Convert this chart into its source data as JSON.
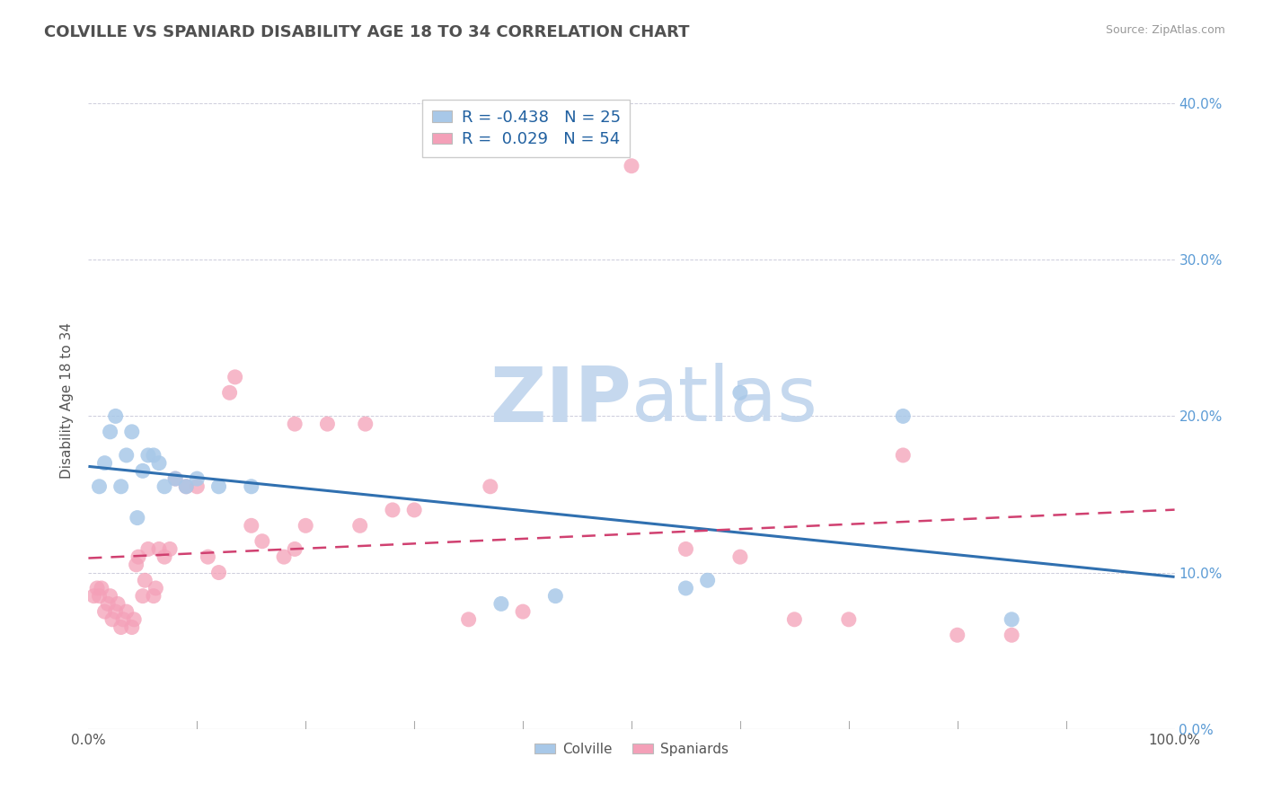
{
  "title": "COLVILLE VS SPANIARD DISABILITY AGE 18 TO 34 CORRELATION CHART",
  "source": "Source: ZipAtlas.com",
  "ylabel": "Disability Age 18 to 34",
  "xlim": [
    0.0,
    1.0
  ],
  "ylim": [
    0.0,
    0.42
  ],
  "xticks": [
    0.0,
    0.1,
    0.2,
    0.3,
    0.4,
    0.5,
    0.6,
    0.7,
    0.8,
    0.9,
    1.0
  ],
  "xticklabels": [
    "0.0%",
    "",
    "",
    "",
    "",
    "",
    "",
    "",
    "",
    "",
    "100.0%"
  ],
  "yticks": [
    0.0,
    0.1,
    0.2,
    0.3,
    0.4
  ],
  "yticklabels_right": [
    "0.0%",
    "10.0%",
    "20.0%",
    "30.0%",
    "40.0%"
  ],
  "colville_R": -0.438,
  "colville_N": 25,
  "spaniard_R": 0.029,
  "spaniard_N": 54,
  "colville_color": "#A8C8E8",
  "spaniard_color": "#F4A0B8",
  "colville_line_color": "#3070B0",
  "spaniard_line_color": "#D04070",
  "background_color": "#FFFFFF",
  "grid_color": "#C8C8D8",
  "title_color": "#505050",
  "watermark_color": "#D0E4F4",
  "colville_points": [
    [
      0.01,
      0.155
    ],
    [
      0.015,
      0.17
    ],
    [
      0.02,
      0.19
    ],
    [
      0.025,
      0.2
    ],
    [
      0.03,
      0.155
    ],
    [
      0.035,
      0.175
    ],
    [
      0.04,
      0.19
    ],
    [
      0.045,
      0.135
    ],
    [
      0.05,
      0.165
    ],
    [
      0.055,
      0.175
    ],
    [
      0.06,
      0.175
    ],
    [
      0.065,
      0.17
    ],
    [
      0.07,
      0.155
    ],
    [
      0.08,
      0.16
    ],
    [
      0.09,
      0.155
    ],
    [
      0.1,
      0.16
    ],
    [
      0.12,
      0.155
    ],
    [
      0.15,
      0.155
    ],
    [
      0.38,
      0.08
    ],
    [
      0.43,
      0.085
    ],
    [
      0.55,
      0.09
    ],
    [
      0.57,
      0.095
    ],
    [
      0.6,
      0.215
    ],
    [
      0.75,
      0.2
    ],
    [
      0.85,
      0.07
    ]
  ],
  "spaniard_points": [
    [
      0.005,
      0.085
    ],
    [
      0.008,
      0.09
    ],
    [
      0.01,
      0.085
    ],
    [
      0.012,
      0.09
    ],
    [
      0.015,
      0.075
    ],
    [
      0.018,
      0.08
    ],
    [
      0.02,
      0.085
    ],
    [
      0.022,
      0.07
    ],
    [
      0.025,
      0.075
    ],
    [
      0.027,
      0.08
    ],
    [
      0.03,
      0.065
    ],
    [
      0.032,
      0.07
    ],
    [
      0.035,
      0.075
    ],
    [
      0.04,
      0.065
    ],
    [
      0.042,
      0.07
    ],
    [
      0.044,
      0.105
    ],
    [
      0.046,
      0.11
    ],
    [
      0.05,
      0.085
    ],
    [
      0.052,
      0.095
    ],
    [
      0.055,
      0.115
    ],
    [
      0.06,
      0.085
    ],
    [
      0.062,
      0.09
    ],
    [
      0.065,
      0.115
    ],
    [
      0.07,
      0.11
    ],
    [
      0.075,
      0.115
    ],
    [
      0.08,
      0.16
    ],
    [
      0.09,
      0.155
    ],
    [
      0.1,
      0.155
    ],
    [
      0.11,
      0.11
    ],
    [
      0.12,
      0.1
    ],
    [
      0.13,
      0.215
    ],
    [
      0.135,
      0.225
    ],
    [
      0.15,
      0.13
    ],
    [
      0.16,
      0.12
    ],
    [
      0.18,
      0.11
    ],
    [
      0.19,
      0.115
    ],
    [
      0.19,
      0.195
    ],
    [
      0.2,
      0.13
    ],
    [
      0.22,
      0.195
    ],
    [
      0.25,
      0.13
    ],
    [
      0.255,
      0.195
    ],
    [
      0.28,
      0.14
    ],
    [
      0.3,
      0.14
    ],
    [
      0.35,
      0.07
    ],
    [
      0.37,
      0.155
    ],
    [
      0.4,
      0.075
    ],
    [
      0.5,
      0.36
    ],
    [
      0.55,
      0.115
    ],
    [
      0.6,
      0.11
    ],
    [
      0.65,
      0.07
    ],
    [
      0.7,
      0.07
    ],
    [
      0.75,
      0.175
    ],
    [
      0.8,
      0.06
    ],
    [
      0.85,
      0.06
    ]
  ]
}
